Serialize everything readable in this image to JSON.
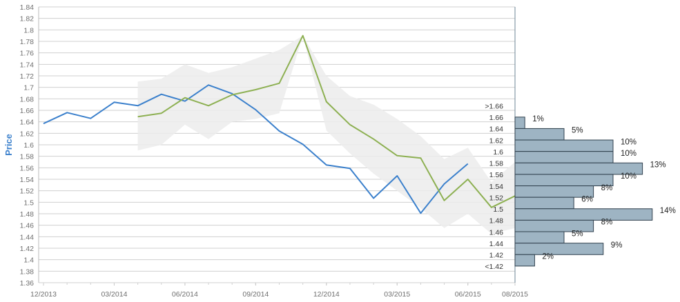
{
  "chart_data": {
    "type": "line",
    "ylabel": "Price",
    "ylim": [
      1.36,
      1.84
    ],
    "y_ticks": [
      "1.36",
      "1.38",
      "1.4",
      "1.42",
      "1.44",
      "1.46",
      "1.48",
      "1.5",
      "1.52",
      "1.54",
      "1.56",
      "1.58",
      "1.6",
      "1.62",
      "1.64",
      "1.66",
      "1.68",
      "1.7",
      "1.72",
      "1.74",
      "1.76",
      "1.78",
      "1.8",
      "1.82",
      "1.84"
    ],
    "x_ticks": [
      "12/2013",
      "03/2014",
      "06/2014",
      "09/2014",
      "12/2014",
      "03/2015",
      "06/2015",
      "08/2015"
    ],
    "grid": true,
    "colors": {
      "blue_series": "#3b80cc",
      "green_series": "#8db052",
      "band": "#ececec",
      "histogram_bar": "#9eb4c3",
      "histogram_edge": "#2f3f4c",
      "ylabel": "#3b80cc"
    },
    "series": [
      {
        "x": [
          "12/2013",
          "01/2014",
          "02/2014",
          "03/2014",
          "04/2014",
          "05/2014",
          "06/2014",
          "07/2014",
          "08/2014",
          "09/2014",
          "10/2014",
          "11/2014",
          "12/2014",
          "01/2015",
          "02/2015",
          "03/2015",
          "04/2015",
          "05/2015",
          "06/2015"
        ],
        "values": [
          1.637,
          1.656,
          1.646,
          1.674,
          1.668,
          1.688,
          1.676,
          1.704,
          1.689,
          1.661,
          1.624,
          1.601,
          1.565,
          1.559,
          1.507,
          1.546,
          1.481,
          1.532,
          1.567
        ]
      },
      {
        "x": [
          "04/2014",
          "05/2014",
          "06/2014",
          "07/2014",
          "08/2014",
          "09/2014",
          "10/2014",
          "11/2014",
          "12/2014",
          "01/2015",
          "02/2015",
          "03/2015",
          "04/2015",
          "05/2015",
          "06/2015",
          "07/2015",
          "08/2015",
          "09/2015"
        ],
        "values": [
          1.649,
          1.655,
          1.682,
          1.668,
          1.687,
          1.696,
          1.707,
          1.79,
          1.675,
          1.635,
          1.61,
          1.581,
          1.577,
          1.503,
          1.54,
          1.491,
          1.511,
          1.53
        ]
      }
    ],
    "band": {
      "x": [
        "04/2014",
        "05/2014",
        "06/2014",
        "07/2014",
        "08/2014",
        "09/2014",
        "10/2014",
        "11/2014",
        "12/2014",
        "01/2015",
        "02/2015",
        "03/2015",
        "04/2015",
        "05/2015",
        "06/2015",
        "07/2015",
        "08/2015",
        "09/2015"
      ],
      "upper": [
        1.71,
        1.715,
        1.74,
        1.725,
        1.735,
        1.75,
        1.765,
        1.79,
        1.72,
        1.685,
        1.67,
        1.645,
        1.615,
        1.575,
        1.595,
        1.535,
        1.57,
        1.59
      ],
      "lower": [
        1.59,
        1.6,
        1.635,
        1.61,
        1.64,
        1.645,
        1.655,
        1.79,
        1.625,
        1.585,
        1.55,
        1.52,
        1.49,
        1.455,
        1.48,
        1.445,
        1.455,
        1.47
      ]
    },
    "histogram": {
      "type": "bar",
      "categories": [
        ">1.66",
        "1.66",
        "1.64",
        "1.62",
        "1.6",
        "1.58",
        "1.56",
        "1.54",
        "1.52",
        "1.5",
        "1.48",
        "1.46",
        "1.44",
        "1.42",
        "<1.42"
      ],
      "values": [
        null,
        1,
        5,
        10,
        10,
        13,
        10,
        8,
        6,
        14,
        8,
        5,
        9,
        2,
        null
      ],
      "labels": [
        "",
        "1%",
        "5%",
        "10%",
        "10%",
        "13%",
        "10%",
        "8%",
        "6%",
        "14%",
        "8%",
        "5%",
        "9%",
        "2%",
        ""
      ]
    }
  }
}
